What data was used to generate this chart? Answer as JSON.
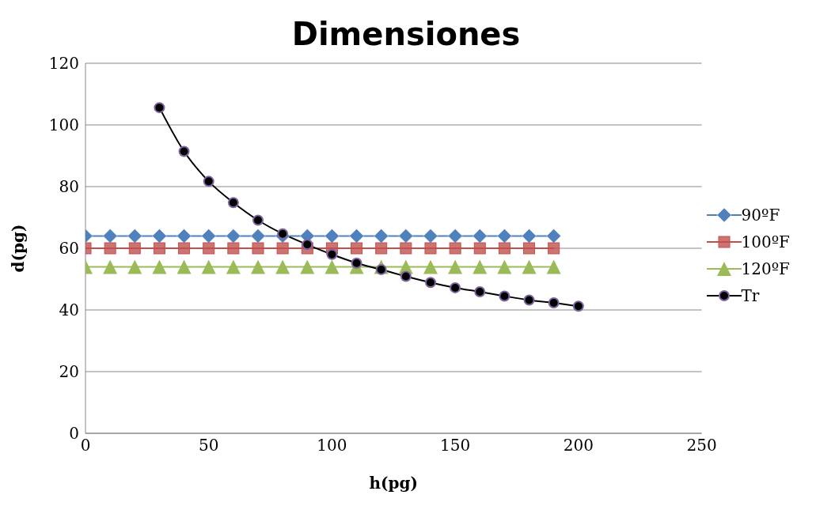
{
  "chart_data": {
    "type": "line",
    "title": "Dimensiones",
    "xlabel": "h(pg)",
    "ylabel": "d(pg)",
    "xlim": [
      0,
      250
    ],
    "xticks": [
      0,
      50,
      100,
      150,
      200,
      250
    ],
    "ylim": [
      0,
      120
    ],
    "yticks": [
      0,
      20,
      40,
      60,
      80,
      100,
      120
    ],
    "grid": "y",
    "legend": "right",
    "series": [
      {
        "name": "90ºF",
        "color": "#4f81bd",
        "marker": "diamond",
        "x": [
          0,
          10,
          20,
          30,
          40,
          50,
          60,
          70,
          80,
          90,
          100,
          110,
          120,
          130,
          140,
          150,
          160,
          170,
          180,
          190
        ],
        "values": [
          64,
          64,
          64,
          64,
          64,
          64,
          64,
          64,
          64,
          64,
          64,
          64,
          64,
          64,
          64,
          64,
          64,
          64,
          64,
          64
        ]
      },
      {
        "name": "100ºF",
        "color": "#c0504d",
        "marker": "square",
        "x": [
          0,
          10,
          20,
          30,
          40,
          50,
          60,
          70,
          80,
          90,
          100,
          110,
          120,
          130,
          140,
          150,
          160,
          170,
          180,
          190
        ],
        "values": [
          60,
          60,
          60,
          60,
          60,
          60,
          60,
          60,
          60,
          60,
          60,
          60,
          60,
          60,
          60,
          60,
          60,
          60,
          60,
          60
        ]
      },
      {
        "name": "120ºF",
        "color": "#9bbb59",
        "marker": "triangle",
        "x": [
          0,
          10,
          20,
          30,
          40,
          50,
          60,
          70,
          80,
          90,
          100,
          110,
          120,
          130,
          140,
          150,
          160,
          170,
          180,
          190
        ],
        "values": [
          54,
          54,
          54,
          54,
          54,
          54,
          54,
          54,
          54,
          54,
          54,
          54,
          54,
          54,
          54,
          54,
          54,
          54,
          54,
          54
        ]
      },
      {
        "name": "Tr",
        "color": "#000000",
        "marker": "circle",
        "x": [
          30,
          40,
          50,
          60,
          70,
          80,
          90,
          100,
          110,
          120,
          130,
          140,
          150,
          160,
          170,
          180,
          190,
          200
        ],
        "values": [
          105.6,
          91.4,
          81.7,
          74.8,
          69.1,
          64.7,
          61.2,
          58,
          55.2,
          53.1,
          50.9,
          48.9,
          47.2,
          45.9,
          44.5,
          43.2,
          42.3,
          41.2
        ]
      }
    ]
  }
}
